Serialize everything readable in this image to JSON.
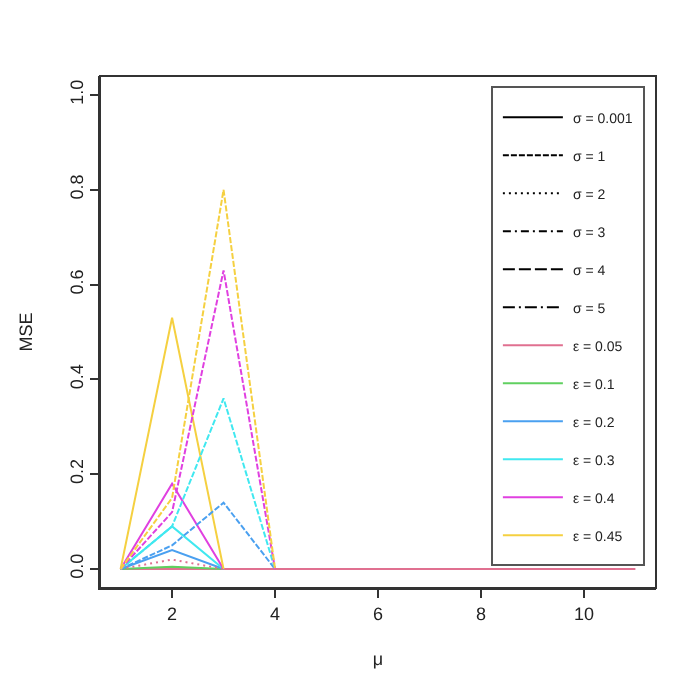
{
  "chart_data": {
    "type": "line",
    "xlabel": "μ",
    "ylabel": "MSE",
    "xlim": [
      0.6,
      11.4
    ],
    "xticks": [
      2,
      4,
      6,
      8,
      10
    ],
    "ylim": [
      -0.04,
      1.04
    ],
    "yticks": [
      {
        "value": 0,
        "label": "0.0"
      },
      {
        "value": 0.2,
        "label": "0.2"
      },
      {
        "value": 0.4,
        "label": "0.4"
      },
      {
        "value": 0.6,
        "label": "0.6"
      },
      {
        "value": 0.8,
        "label": "0.8"
      },
      {
        "value": 1,
        "label": "1.0"
      }
    ],
    "legend": "top right",
    "marker": "none",
    "series": [
      {
        "name": "σ = 0.001",
        "color": "#000000",
        "line_style": "solid"
      },
      {
        "name": "σ = 1",
        "color": "#000000",
        "line_style": "dashed"
      },
      {
        "name": "σ = 2",
        "color": "#000000",
        "line_style": "dotted"
      },
      {
        "name": "σ = 3",
        "color": "#000000",
        "line_style": "dashdot"
      },
      {
        "name": "σ = 4",
        "color": "#000000",
        "line_style": "longdash"
      },
      {
        "name": "σ = 5",
        "color": "#000000",
        "line_style": "longdashdot"
      },
      {
        "name": "ε = 0.05",
        "color": "#e07090",
        "line_style": "solid",
        "x": [
          1,
          2,
          3,
          4,
          5,
          6,
          7,
          8,
          9,
          10,
          11
        ],
        "values": [
          0,
          0,
          0,
          0,
          0,
          0,
          0,
          0,
          0,
          0,
          0
        ]
      },
      {
        "name": "ε = 0.1",
        "color": "#60d060",
        "line_style": "solid",
        "x": [
          1,
          2,
          3
        ],
        "values": [
          0,
          0.005,
          0
        ]
      },
      {
        "name": "ε = 0.2",
        "color": "#4aa0f0",
        "line_style": "solid",
        "x": [
          1,
          2,
          3
        ],
        "values": [
          0,
          0.04,
          0
        ]
      },
      {
        "name": "ε = 0.3",
        "color": "#40e8f0",
        "line_style": "solid",
        "x": [
          1,
          2,
          3
        ],
        "values": [
          0,
          0.09,
          0
        ]
      },
      {
        "name": "ε = 0.4",
        "color": "#e040e0",
        "line_style": "solid",
        "x": [
          1,
          2,
          3
        ],
        "values": [
          0,
          0.18,
          0
        ]
      },
      {
        "name": "ε = 0.45",
        "color": "#f5d040",
        "line_style": "solid",
        "x": [
          1,
          2,
          3
        ],
        "values": [
          0,
          0.53,
          0
        ]
      },
      {
        "color": "#e07090",
        "line_style": "dotted",
        "x": [
          1,
          2,
          3
        ],
        "values": [
          0,
          0.02,
          0
        ]
      },
      {
        "color": "#4aa0f0",
        "line_style": "dashed",
        "x": [
          1,
          2,
          3,
          4
        ],
        "values": [
          0,
          0.05,
          0.14,
          0
        ]
      },
      {
        "color": "#40e8f0",
        "line_style": "dashed",
        "x": [
          1,
          2,
          3,
          4
        ],
        "values": [
          0,
          0.09,
          0.36,
          0
        ]
      },
      {
        "color": "#e040e0",
        "line_style": "dashed",
        "x": [
          1,
          2,
          3,
          4
        ],
        "values": [
          0,
          0.12,
          0.63,
          0
        ]
      },
      {
        "color": "#f5d040",
        "line_style": "dashed",
        "x": [
          1,
          2,
          3,
          4
        ],
        "values": [
          0,
          0.15,
          0.8,
          0
        ]
      }
    ]
  }
}
